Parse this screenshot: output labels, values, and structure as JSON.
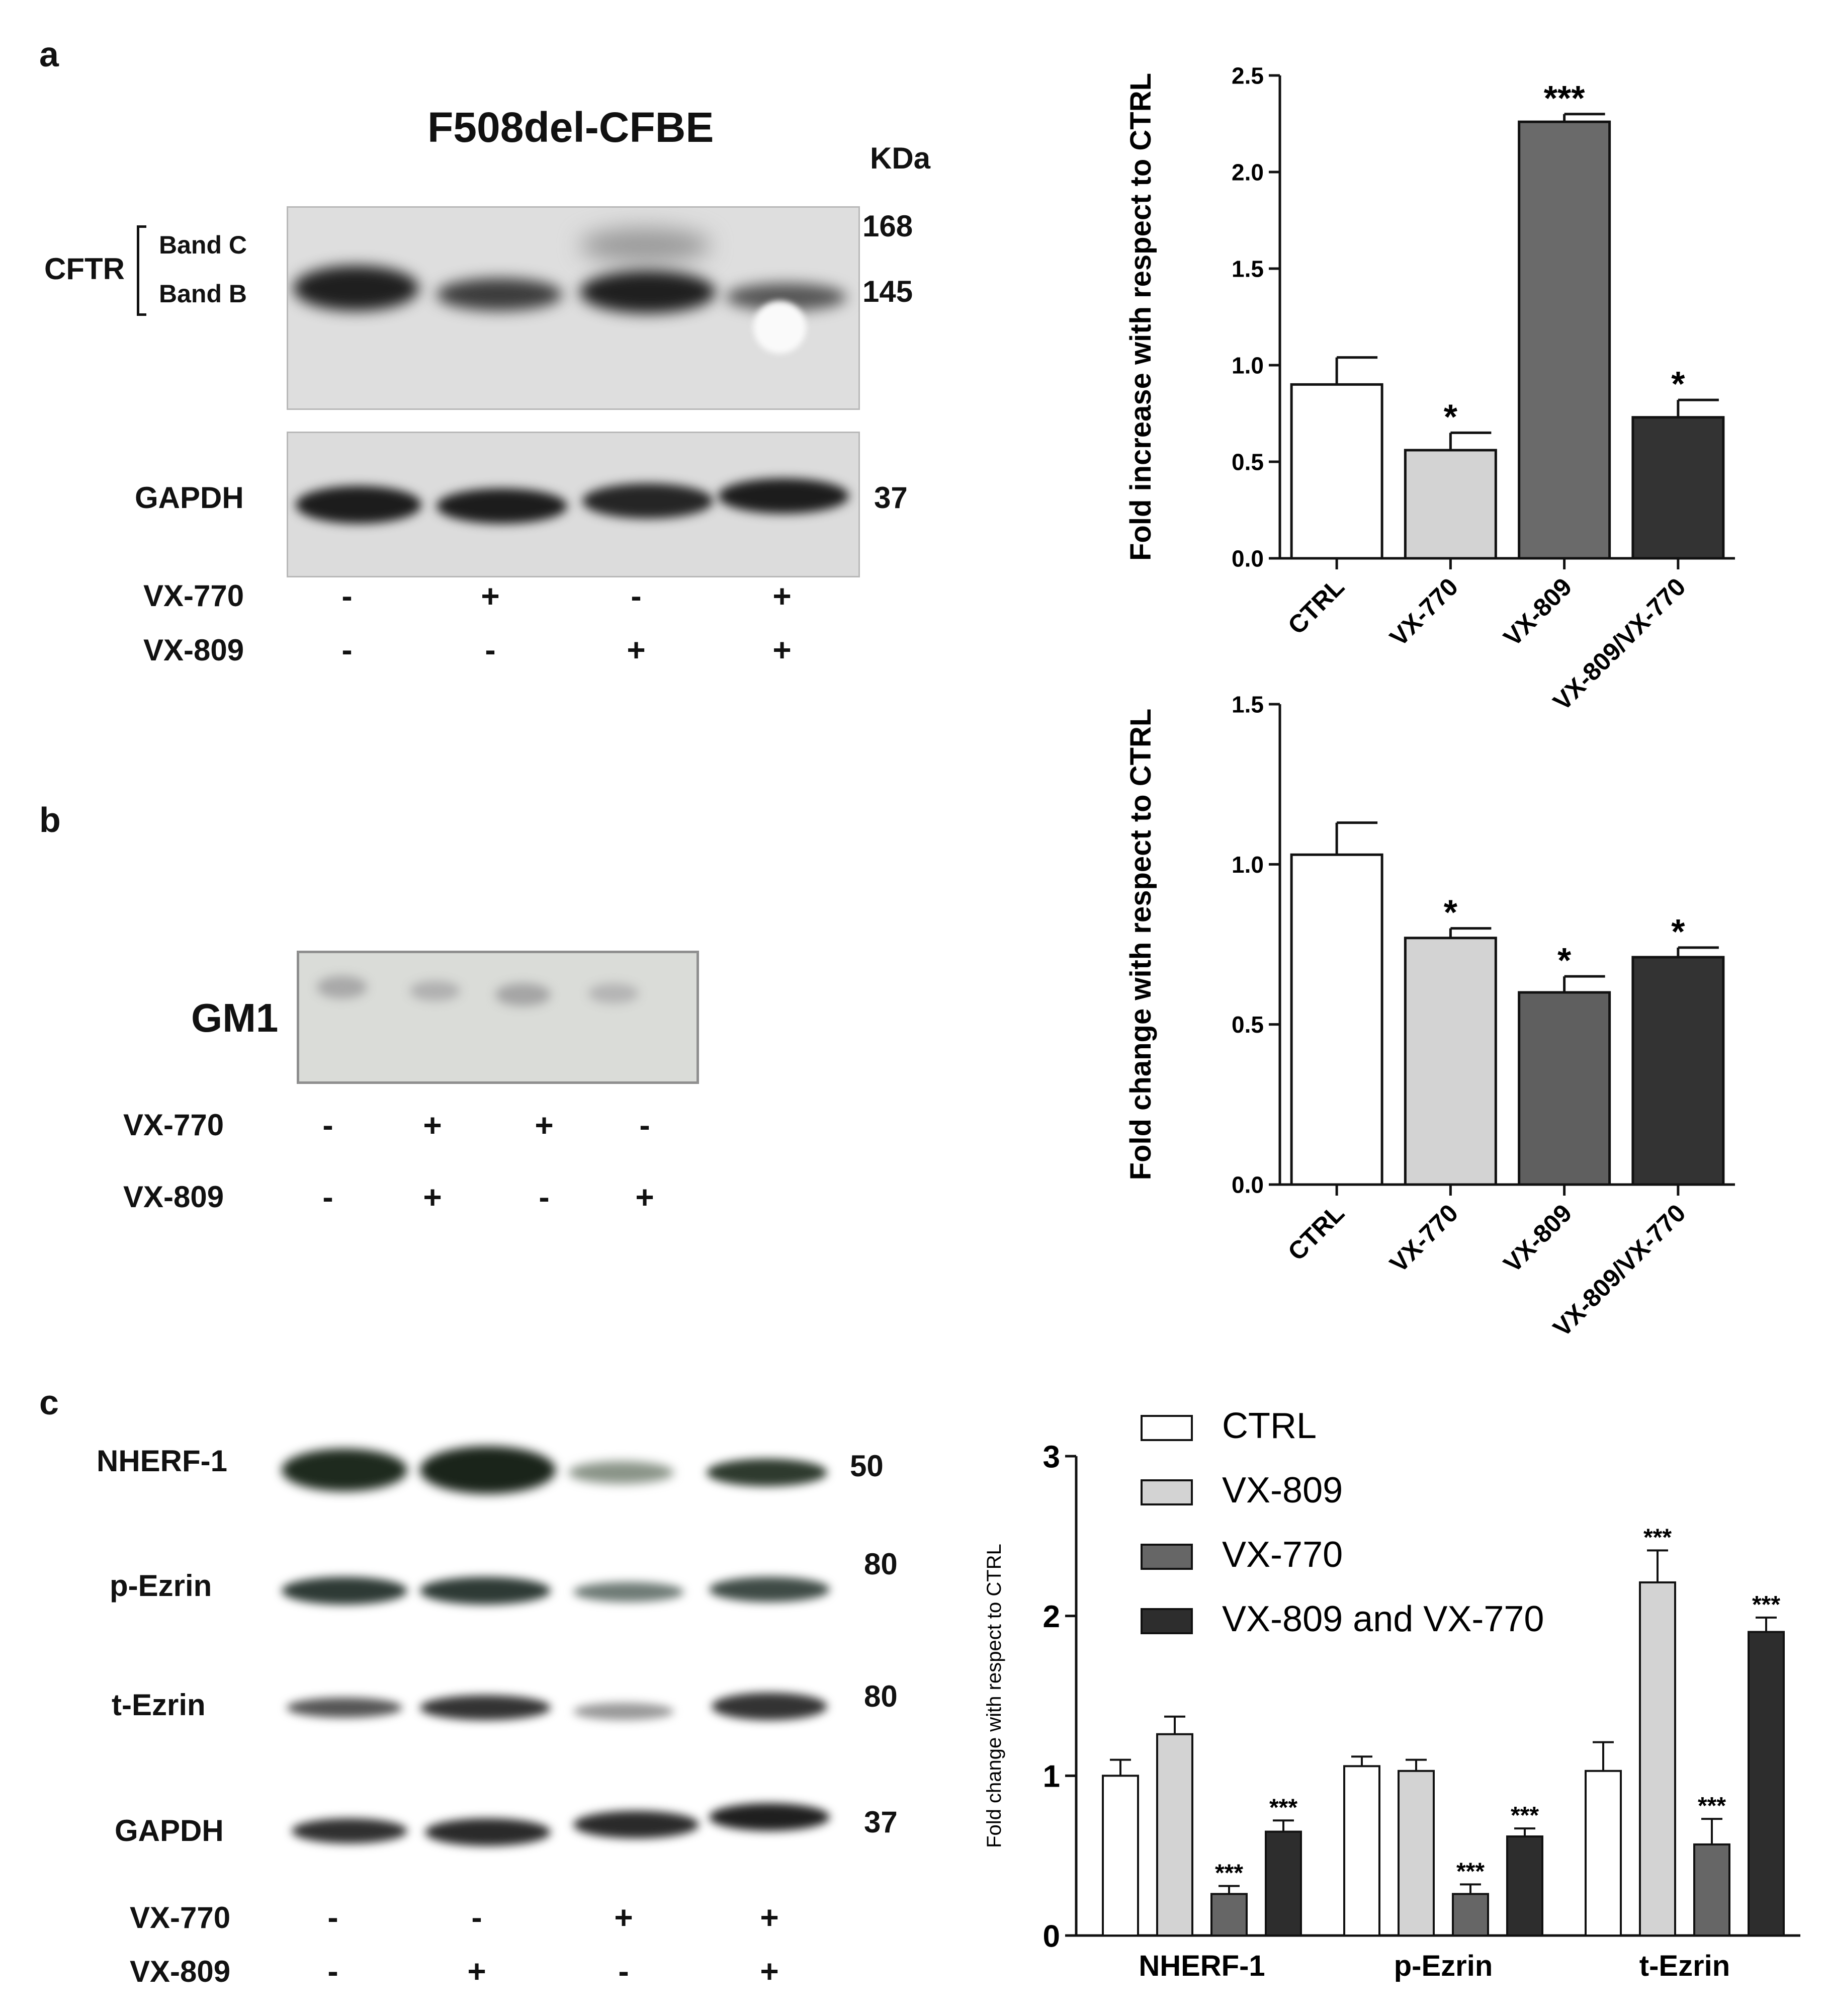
{
  "panel_a": {
    "letter": "a",
    "blot_title": "F508del-CFBE",
    "kda_label": "KDa",
    "protein_label": "CFTR",
    "band_c_label": "Band C",
    "band_b_label": "Band B",
    "gapdh_label": "GAPDH",
    "mw": [
      "168",
      "145",
      "37"
    ],
    "row1_label": "VX-770",
    "row1_signs": [
      "-",
      "+",
      "-",
      "+"
    ],
    "row2_label": "VX-809",
    "row2_signs": [
      "-",
      "-",
      "+",
      "+"
    ]
  },
  "panel_b": {
    "letter": "b",
    "protein_label": "GM1",
    "row1_label": "VX-770",
    "row1_signs": [
      "-",
      "+",
      "+",
      "-"
    ],
    "row2_label": "VX-809",
    "row2_signs": [
      "-",
      "+",
      "-",
      "+"
    ]
  },
  "panel_c": {
    "letter": "c",
    "labels": [
      "NHERF-1",
      "p-Ezrin",
      "t-Ezrin",
      "GAPDH"
    ],
    "mw": [
      "50",
      "80",
      "80",
      "37"
    ],
    "row1_label": "VX-770",
    "row1_signs": [
      "-",
      "-",
      "+",
      "+"
    ],
    "row2_label": "VX-809",
    "row2_signs": [
      "-",
      "+",
      "-",
      "+"
    ]
  },
  "chart_data": [
    {
      "type": "bar",
      "ylabel": "Fold increase with respect to CTRL",
      "categories": [
        "CTRL",
        "VX-770",
        "VX-809",
        "VX-809/VX-770"
      ],
      "values": [
        0.9,
        0.56,
        2.26,
        0.73
      ],
      "errors": [
        0.14,
        0.09,
        0.04,
        0.09
      ],
      "significance": [
        "",
        "*",
        "***",
        "*"
      ],
      "colors": [
        "#ffffff",
        "#d3d3d3",
        "#6a6a6a",
        "#333333"
      ],
      "ylim": [
        0,
        2.5
      ],
      "yticks": [
        "0.0",
        "0.5",
        "1.0",
        "1.5",
        "2.0",
        "2.5"
      ]
    },
    {
      "type": "bar",
      "ylabel": "Fold change with respect to CTRL",
      "categories": [
        "CTRL",
        "VX-770",
        "VX-809",
        "VX-809/VX-770"
      ],
      "values": [
        1.03,
        0.77,
        0.6,
        0.71
      ],
      "errors": [
        0.1,
        0.03,
        0.05,
        0.03
      ],
      "significance": [
        "",
        "*",
        "*",
        "*"
      ],
      "colors": [
        "#ffffff",
        "#d3d3d3",
        "#5f5f5f",
        "#333333"
      ],
      "ylim": [
        0,
        1.5
      ],
      "yticks": [
        "0.0",
        "0.5",
        "1.0",
        "1.5"
      ]
    },
    {
      "type": "bar",
      "ylabel": "Fold change with respect to CTRL",
      "categories": [
        "NHERF-1",
        "p-Ezrin",
        "t-Ezrin"
      ],
      "series": [
        {
          "name": "CTRL",
          "color": "#ffffff",
          "values": [
            1.0,
            1.06,
            1.03
          ],
          "errors": [
            0.1,
            0.06,
            0.18
          ],
          "significance": [
            "",
            "",
            ""
          ]
        },
        {
          "name": "VX-809",
          "color": "#d3d3d3",
          "values": [
            1.26,
            1.03,
            2.21
          ],
          "errors": [
            0.11,
            0.07,
            0.2
          ],
          "significance": [
            "",
            "",
            "***"
          ]
        },
        {
          "name": "VX-770",
          "color": "#666666",
          "values": [
            0.26,
            0.26,
            0.57
          ],
          "errors": [
            0.05,
            0.06,
            0.16
          ],
          "significance": [
            "***",
            "***",
            "***"
          ]
        },
        {
          "name": "VX-809 and VX-770",
          "color": "#2d2d2d",
          "values": [
            0.65,
            0.62,
            1.9
          ],
          "errors": [
            0.07,
            0.05,
            0.09
          ],
          "significance": [
            "***",
            "***",
            "***"
          ]
        }
      ],
      "ylim": [
        0,
        3
      ],
      "yticks": [
        "0",
        "1",
        "2",
        "3"
      ],
      "legend": "top-right"
    }
  ]
}
